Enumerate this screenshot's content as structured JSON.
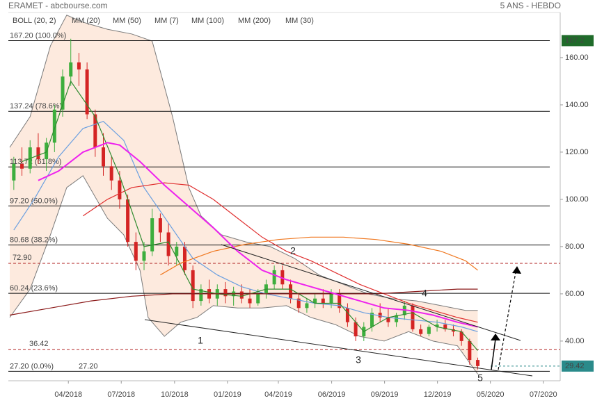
{
  "chart_data": {
    "type": "candlestick",
    "title": "ERAMET - abcbourse.com",
    "subtitle": "5 ANS - HEBDO",
    "x": [
      1,
      3,
      5,
      7,
      9,
      11,
      13,
      15,
      17,
      19,
      21,
      23,
      25,
      27,
      29,
      31,
      33,
      35,
      37,
      39,
      41,
      43,
      45,
      47,
      49,
      51,
      53,
      55,
      57,
      59,
      61,
      63,
      65,
      67,
      69,
      71,
      73,
      75,
      77,
      79,
      81,
      83,
      85,
      87,
      89,
      91,
      93,
      95,
      97,
      99,
      101,
      103,
      105,
      107,
      109,
      111,
      113,
      115
    ],
    "open": [
      108,
      115,
      113,
      122,
      117,
      124,
      138,
      152,
      158,
      155,
      136,
      122,
      114,
      108,
      100,
      82,
      74,
      78,
      92,
      86,
      76,
      80,
      70,
      57,
      62,
      58,
      62,
      59,
      61,
      58,
      56,
      60,
      64,
      70,
      64,
      58,
      54,
      56,
      58,
      56,
      60,
      54,
      48,
      42,
      46,
      52,
      50,
      48,
      51,
      55,
      45,
      43,
      46,
      47,
      45,
      44,
      40,
      32
    ],
    "high": [
      118,
      122,
      125,
      128,
      126,
      140,
      155,
      168,
      162,
      158,
      138,
      128,
      118,
      112,
      102,
      86,
      82,
      96,
      94,
      90,
      82,
      82,
      72,
      64,
      66,
      64,
      65,
      63,
      64,
      62,
      62,
      66,
      72,
      72,
      66,
      60,
      58,
      60,
      62,
      62,
      62,
      56,
      50,
      48,
      54,
      56,
      54,
      52,
      57,
      56,
      47,
      47,
      49,
      49,
      47,
      45,
      41,
      33
    ],
    "low": [
      104,
      110,
      111,
      115,
      112,
      120,
      135,
      148,
      148,
      134,
      118,
      110,
      104,
      96,
      80,
      70,
      70,
      76,
      82,
      72,
      72,
      68,
      54,
      55,
      56,
      55,
      56,
      55,
      56,
      54,
      55,
      58,
      62,
      62,
      56,
      52,
      52,
      54,
      54,
      54,
      52,
      46,
      40,
      40,
      44,
      48,
      46,
      46,
      49,
      44,
      42,
      42,
      44,
      44,
      42,
      38,
      30,
      28
    ],
    "close": [
      115,
      113,
      122,
      117,
      124,
      138,
      152,
      158,
      155,
      136,
      122,
      114,
      108,
      100,
      82,
      74,
      78,
      92,
      86,
      76,
      80,
      70,
      57,
      62,
      58,
      62,
      59,
      61,
      58,
      56,
      60,
      64,
      70,
      64,
      58,
      54,
      56,
      58,
      56,
      60,
      54,
      48,
      42,
      46,
      52,
      50,
      48,
      51,
      55,
      45,
      43,
      46,
      47,
      45,
      44,
      40,
      32,
      29.42
    ],
    "up_color": "#3dae3d",
    "down_color": "#d42424",
    "xlim": [
      0,
      134.4
    ],
    "xticks": [
      {
        "value": 14.4,
        "label": "04/2018"
      },
      {
        "value": 27.4,
        "label": "07/2018"
      },
      {
        "value": 40.5,
        "label": "10/2018"
      },
      {
        "value": 53.5,
        "label": "01/2019"
      },
      {
        "value": 66,
        "label": "04/2019"
      },
      {
        "value": 79.1,
        "label": "06/2019"
      },
      {
        "value": 92.1,
        "label": "09/2019"
      },
      {
        "value": 105.1,
        "label": "12/2019"
      },
      {
        "value": 118.1,
        "label": "05/2020"
      },
      {
        "value": 131.1,
        "label": "07/2020"
      }
    ],
    "ylim": [
      23.2,
      179.1
    ],
    "yticks": [
      {
        "value": 40,
        "label": "40.00"
      },
      {
        "value": 60,
        "label": "60.00"
      },
      {
        "value": 80,
        "label": "80.00"
      },
      {
        "value": 100,
        "label": "100.00"
      },
      {
        "value": 120,
        "label": "120.00"
      },
      {
        "value": 140,
        "label": "140.00"
      },
      {
        "value": 160,
        "label": "160.00"
      }
    ],
    "bands": {
      "name": "BOLL (20, 2)",
      "color": "#7a7a7a",
      "fill": "#fbd9c3",
      "upper": {
        "x": [
          0,
          5,
          10,
          14,
          18,
          24,
          30,
          35,
          40,
          44,
          47,
          52,
          58,
          64,
          70,
          76,
          82,
          88,
          94,
          100,
          106,
          112,
          115
        ],
        "values": [
          122,
          135,
          165,
          178,
          175,
          172,
          170,
          167,
          135,
          105,
          93,
          85,
          82,
          80,
          75,
          68,
          64,
          60,
          58,
          57,
          55,
          53,
          53
        ]
      },
      "lower": {
        "x": [
          0,
          5,
          10,
          14,
          18,
          24,
          28,
          32,
          34,
          38,
          42,
          46,
          50,
          56,
          62,
          68,
          74,
          80,
          86,
          92,
          98,
          104,
          110,
          115
        ],
        "values": [
          50,
          62,
          85,
          105,
          110,
          92,
          85,
          70,
          50,
          42,
          48,
          50,
          55,
          54,
          54,
          55,
          50,
          47,
          42,
          40,
          44,
          40,
          38,
          26
        ]
      }
    },
    "series": [
      {
        "name": "MM (20)",
        "color": "#6a9fe0",
        "x": [
          1,
          6,
          12,
          18,
          23,
          28,
          33,
          39,
          45,
          51,
          57,
          63,
          69,
          75,
          81,
          87,
          93,
          99,
          105,
          111,
          115
        ],
        "values": [
          87,
          100,
          118,
          130,
          133,
          125,
          105,
          90,
          75,
          68,
          63,
          60,
          58,
          56,
          55,
          52,
          50,
          49,
          48,
          46,
          44
        ]
      },
      {
        "name": "MM (50)",
        "color": "#e03030",
        "x": [
          18,
          24,
          30,
          38,
          44,
          50,
          56,
          62,
          68,
          74,
          80,
          86,
          92,
          98,
          104,
          110,
          115
        ],
        "values": [
          93,
          100,
          105,
          107,
          106,
          100,
          92,
          84,
          78,
          74,
          69,
          64,
          60,
          56,
          53,
          50,
          48
        ]
      },
      {
        "name": "MM (7)",
        "color": "#2e8b2e",
        "x": [
          3,
          9,
          15,
          21,
          27,
          33,
          39,
          45,
          51,
          57,
          63,
          69,
          75,
          81,
          87,
          93,
          99,
          105,
          111,
          115
        ],
        "values": [
          116,
          120,
          150,
          135,
          110,
          80,
          82,
          62,
          60,
          59,
          62,
          62,
          56,
          56,
          44,
          50,
          52,
          46,
          44,
          36
        ]
      },
      {
        "name": "MM (100)",
        "color": "#f07820",
        "x": [
          37,
          42,
          50,
          58,
          66,
          74,
          82,
          90,
          98,
          106,
          112,
          115
        ],
        "values": [
          68,
          73,
          78,
          81,
          83,
          84,
          84,
          83,
          81,
          78,
          74,
          70
        ]
      },
      {
        "name": "MM (200)",
        "color": "#8b1a1a",
        "x": [
          0,
          10,
          20,
          30,
          40,
          50,
          60,
          70,
          80,
          90,
          100,
          110,
          115
        ],
        "values": [
          51,
          54,
          57,
          59,
          60,
          60,
          60,
          60,
          60,
          60,
          61,
          62,
          62
        ]
      },
      {
        "name": "MM (30)",
        "color": "#ee22ee",
        "x": [
          7,
          12,
          18,
          24,
          27,
          32,
          38,
          44,
          50,
          56,
          62,
          68,
          74,
          80,
          86,
          92,
          98,
          104,
          110,
          115
        ],
        "values": [
          108,
          112,
          120,
          124,
          123,
          116,
          106,
          97,
          88,
          78,
          70,
          66,
          63,
          60,
          57,
          54,
          53,
          51,
          48,
          46
        ]
      }
    ],
    "levels": [
      {
        "value": 167.2,
        "label": "167.20  (100.0%)"
      },
      {
        "value": 137.24,
        "label": "137.24  (78.6%)"
      },
      {
        "value": 113.72,
        "label": "113.72  (61.8%)"
      },
      {
        "value": 97.2,
        "label": "97.20  (50.0%)"
      },
      {
        "value": 80.68,
        "label": "80.68  (38.2%)"
      },
      {
        "value": 60.24,
        "label": "60.24  (23.6%)"
      },
      {
        "value": 27.2,
        "label": "27.20  (0.0%)"
      }
    ],
    "dashed_levels": [
      {
        "value": 72.9,
        "label": "72.90"
      },
      {
        "value": 36.42,
        "label": "36.42"
      }
    ],
    "base_label": {
      "value": 27.2,
      "label": "27.20"
    },
    "price_boxes": [
      {
        "value": 167.2,
        "label": "167.2",
        "color": "#1f6b2a"
      },
      {
        "value": 29.42,
        "label": "29.42",
        "color": "#2a8a8a"
      }
    ],
    "wave_labels": [
      "1",
      "2",
      "3",
      "4",
      "5"
    ]
  }
}
